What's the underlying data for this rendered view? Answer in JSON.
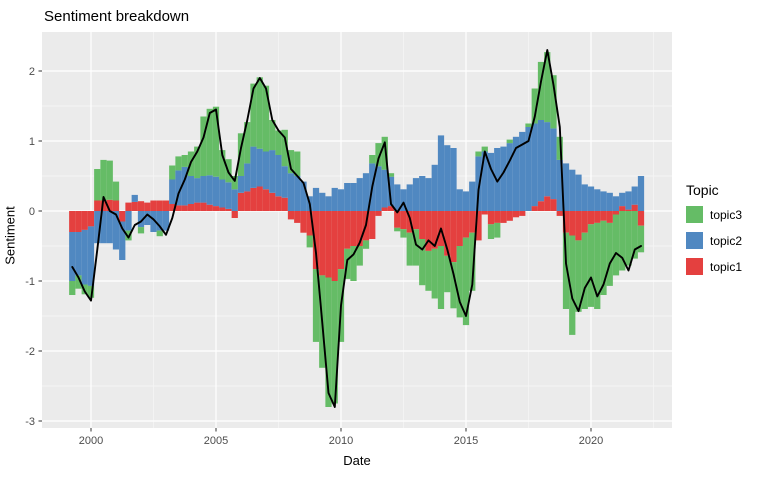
{
  "title": "Sentiment breakdown",
  "axes": {
    "x_label": "Date",
    "y_label": "Sentiment"
  },
  "legend": {
    "title": "Topic",
    "items": [
      {
        "label": "topic3",
        "color": "#65bc66"
      },
      {
        "label": "topic2",
        "color": "#5088c1"
      },
      {
        "label": "topic1",
        "color": "#e4403f"
      }
    ]
  },
  "colors": {
    "panel_background": "#ebebeb",
    "grid": "#ffffff",
    "tick_label": "#4d4d4d",
    "line": "#000000"
  },
  "chart_data": {
    "type": "bar",
    "subtype": "stacked-quarterly-bars-with-line-overlay",
    "title": "Sentiment breakdown",
    "xlabel": "Date",
    "ylabel": "Sentiment",
    "ylim": [
      -3.1,
      2.55
    ],
    "xlim_years": [
      1998.0,
      2023.25
    ],
    "xticks": [
      2000,
      2005,
      2010,
      2015,
      2020
    ],
    "yticks": [
      -3,
      -2,
      -1,
      0,
      1,
      2
    ],
    "grid": true,
    "legend_position": "right",
    "categories": [
      "1999 Q2",
      "1999 Q3",
      "1999 Q4",
      "2000 Q1",
      "2000 Q2",
      "2000 Q3",
      "2000 Q4",
      "2001 Q1",
      "2001 Q2",
      "2001 Q3",
      "2001 Q4",
      "2002 Q1",
      "2002 Q2",
      "2002 Q3",
      "2002 Q4",
      "2003 Q1",
      "2003 Q2",
      "2003 Q3",
      "2003 Q4",
      "2004 Q1",
      "2004 Q2",
      "2004 Q3",
      "2004 Q4",
      "2005 Q1",
      "2005 Q2",
      "2005 Q3",
      "2005 Q4",
      "2006 Q1",
      "2006 Q2",
      "2006 Q3",
      "2006 Q4",
      "2007 Q1",
      "2007 Q2",
      "2007 Q3",
      "2007 Q4",
      "2008 Q1",
      "2008 Q2",
      "2008 Q3",
      "2008 Q4",
      "2009 Q1",
      "2009 Q2",
      "2009 Q3",
      "2009 Q4",
      "2010 Q1",
      "2010 Q2",
      "2010 Q3",
      "2010 Q4",
      "2011 Q1",
      "2011 Q2",
      "2011 Q3",
      "2011 Q4",
      "2012 Q1",
      "2012 Q2",
      "2012 Q3",
      "2012 Q4",
      "2013 Q1",
      "2013 Q2",
      "2013 Q3",
      "2013 Q4",
      "2014 Q1",
      "2014 Q2",
      "2014 Q3",
      "2014 Q4",
      "2015 Q1",
      "2015 Q2",
      "2015 Q3",
      "2015 Q4",
      "2016 Q1",
      "2016 Q2",
      "2016 Q3",
      "2016 Q4",
      "2017 Q1",
      "2017 Q2",
      "2017 Q3",
      "2017 Q4",
      "2018 Q1",
      "2018 Q2",
      "2018 Q3",
      "2018 Q4",
      "2019 Q1",
      "2019 Q2",
      "2019 Q3",
      "2019 Q4",
      "2020 Q1",
      "2020 Q2",
      "2020 Q3",
      "2020 Q4",
      "2021 Q1",
      "2021 Q2",
      "2021 Q3",
      "2021 Q4",
      "2022 Q1"
    ],
    "series": [
      {
        "name": "topic1",
        "color": "#e4403f",
        "values": [
          -0.3,
          -0.3,
          -0.27,
          -0.22,
          0.15,
          0.15,
          0.16,
          0.15,
          -0.15,
          0.12,
          0.13,
          0.14,
          0.12,
          0.15,
          0.15,
          0.15,
          0.1,
          0.08,
          0.08,
          0.1,
          0.12,
          0.12,
          0.09,
          0.07,
          0.05,
          0.03,
          -0.1,
          0.26,
          0.28,
          0.33,
          0.35,
          0.31,
          0.26,
          0.21,
          0.19,
          -0.12,
          -0.17,
          -0.31,
          -0.35,
          -0.83,
          -0.92,
          -0.95,
          -1.0,
          -0.83,
          -0.54,
          -0.5,
          -0.5,
          -0.42,
          -0.4,
          -0.07,
          0.05,
          0.07,
          -0.24,
          -0.26,
          -0.31,
          -0.26,
          -0.4,
          -0.57,
          -0.54,
          -0.5,
          -0.64,
          -0.73,
          -0.5,
          -0.38,
          -0.31,
          -0.42,
          -0.05,
          -0.19,
          -0.17,
          -0.17,
          -0.14,
          -0.09,
          -0.07,
          0.0,
          0.07,
          0.14,
          0.21,
          0.17,
          -0.07,
          -0.31,
          -0.35,
          -0.42,
          -0.31,
          -0.19,
          -0.17,
          -0.14,
          -0.17,
          -0.05,
          0.07,
          0.02,
          0.09,
          -0.21
        ]
      },
      {
        "name": "topic2",
        "color": "#5088c1",
        "values": [
          -0.7,
          -0.62,
          -0.78,
          -0.85,
          -0.46,
          -0.46,
          -0.46,
          -0.55,
          -0.55,
          -0.28,
          0.1,
          -0.23,
          -0.2,
          -0.3,
          -0.28,
          -0.28,
          0.35,
          0.5,
          0.55,
          0.4,
          0.35,
          0.38,
          0.42,
          0.42,
          0.4,
          0.38,
          0.31,
          0.24,
          0.4,
          0.59,
          0.54,
          0.54,
          0.61,
          0.59,
          0.45,
          0.54,
          0.5,
          0.42,
          0.21,
          0.33,
          0.26,
          0.21,
          0.33,
          0.31,
          0.4,
          0.4,
          0.47,
          0.54,
          0.68,
          0.64,
          0.54,
          0.42,
          0.38,
          0.31,
          0.38,
          0.47,
          0.5,
          0.47,
          0.66,
          1.08,
          0.94,
          0.9,
          0.31,
          0.28,
          0.42,
          0.78,
          0.85,
          0.83,
          0.9,
          0.92,
          0.97,
          1.06,
          1.13,
          1.2,
          1.18,
          1.16,
          1.06,
          1.01,
          0.73,
          0.68,
          0.59,
          0.52,
          0.38,
          0.35,
          0.31,
          0.28,
          0.26,
          0.21,
          0.19,
          0.26,
          0.26,
          0.5
        ]
      },
      {
        "name": "topic3",
        "color": "#65bc66",
        "values": [
          -0.2,
          -0.19,
          -0.14,
          -0.17,
          0.45,
          0.58,
          0.56,
          0.27,
          0.0,
          -0.14,
          0.0,
          -0.09,
          0.0,
          0.0,
          -0.08,
          0.0,
          0.2,
          0.2,
          0.17,
          0.35,
          0.45,
          0.85,
          0.95,
          1.0,
          0.42,
          0.33,
          0.19,
          0.61,
          0.59,
          0.9,
          1.02,
          0.94,
          0.43,
          0.35,
          0.52,
          0.33,
          0.35,
          0.0,
          -0.17,
          -1.04,
          -1.32,
          -1.85,
          -1.75,
          -1.04,
          -0.43,
          -0.5,
          -0.28,
          -0.12,
          0.12,
          0.33,
          0.47,
          0.05,
          -0.05,
          -0.12,
          -0.47,
          -0.52,
          -0.66,
          -0.57,
          -0.71,
          -0.9,
          -0.52,
          -0.66,
          -1.02,
          -1.25,
          -0.83,
          0.07,
          0.07,
          -0.21,
          -0.21,
          0.0,
          0.05,
          0.0,
          0.0,
          0.05,
          0.5,
          0.83,
          1.0,
          0.76,
          0.33,
          -1.09,
          -1.42,
          -1.02,
          -1.09,
          -1.18,
          -1.23,
          -1.06,
          -0.9,
          -0.87,
          -0.85,
          -0.78,
          -0.68,
          -0.38
        ]
      }
    ],
    "line": {
      "name": "net sentiment line",
      "color": "#000000",
      "values": [
        -0.8,
        -0.95,
        -1.15,
        -1.28,
        -0.55,
        0.2,
        0.0,
        -0.05,
        -0.25,
        -0.38,
        -0.2,
        -0.15,
        -0.05,
        -0.12,
        -0.22,
        -0.34,
        -0.1,
        0.25,
        0.45,
        0.7,
        0.85,
        1.05,
        1.4,
        1.45,
        0.8,
        0.55,
        0.43,
        0.9,
        1.3,
        1.75,
        1.9,
        1.75,
        1.3,
        1.15,
        1.05,
        0.6,
        0.5,
        0.4,
        0.1,
        -0.6,
        -1.6,
        -2.6,
        -2.8,
        -1.35,
        -0.7,
        -0.62,
        -0.45,
        -0.2,
        0.35,
        0.75,
        0.98,
        0.1,
        -0.02,
        0.12,
        -0.1,
        -0.48,
        -0.55,
        -0.42,
        -0.5,
        -0.25,
        -0.55,
        -0.9,
        -1.3,
        -1.5,
        -1.05,
        0.3,
        0.85,
        0.6,
        0.42,
        0.55,
        0.72,
        0.9,
        0.95,
        1.0,
        1.35,
        1.85,
        2.3,
        1.8,
        1.2,
        -0.75,
        -1.25,
        -1.43,
        -1.1,
        -0.95,
        -1.22,
        -1.05,
        -0.75,
        -0.6,
        -0.67,
        -0.85,
        -0.55,
        -0.5
      ]
    }
  }
}
